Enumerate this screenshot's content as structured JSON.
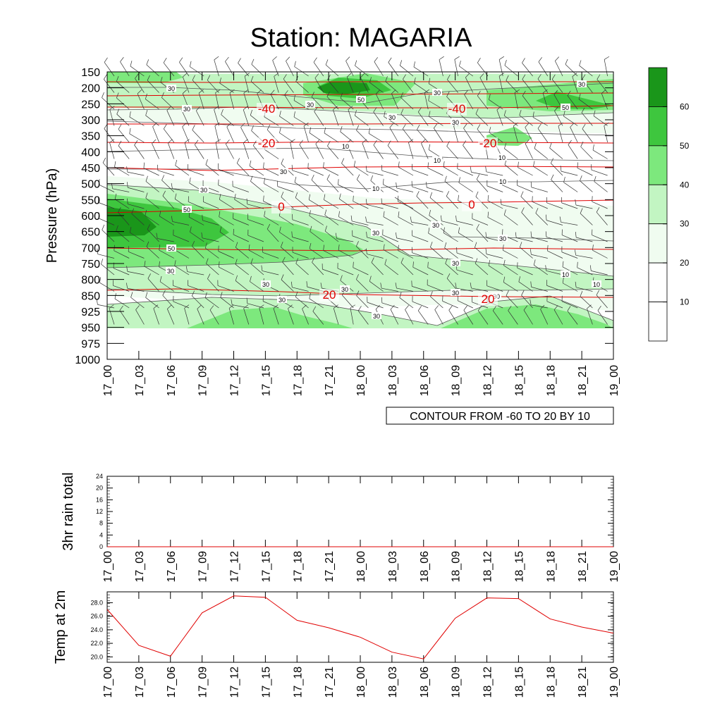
{
  "title": "Station: MAGARIA",
  "time_labels": [
    "17_00",
    "17_03",
    "17_06",
    "17_09",
    "17_12",
    "17_15",
    "17_18",
    "17_21",
    "18_00",
    "18_03",
    "18_06",
    "18_09",
    "18_12",
    "18_15",
    "18_18",
    "18_21",
    "19_00"
  ],
  "chart_data": [
    {
      "type": "heatmap",
      "name": "wind speed / temperature cross-section",
      "title": "Station: MAGARIA",
      "ylabel": "Pressure (hPa)",
      "xlabel": "",
      "pressure_levels": [
        150,
        200,
        250,
        300,
        350,
        400,
        450,
        500,
        550,
        600,
        650,
        700,
        750,
        800,
        850,
        925,
        950,
        975,
        1000
      ],
      "x": [
        "17_00",
        "17_03",
        "17_06",
        "17_09",
        "17_12",
        "17_15",
        "17_18",
        "17_21",
        "18_00",
        "18_03",
        "18_06",
        "18_09",
        "18_12",
        "18_15",
        "18_18",
        "18_21",
        "19_00"
      ],
      "colorbar": {
        "levels": [
          10,
          20,
          30,
          40,
          50,
          60
        ],
        "labels": [
          "10",
          "20",
          "30",
          "40",
          "50",
          "60"
        ],
        "colors": [
          "#ffffff",
          "#f0fcf0",
          "#c2f5c2",
          "#7de87d",
          "#3ec63e",
          "#1a961a"
        ]
      },
      "contour_labels": [
        "30",
        "30",
        "30",
        "50",
        "30",
        "50",
        "30",
        "30",
        "30",
        "10",
        "10",
        "30",
        "10",
        "10",
        "10",
        "30",
        "50",
        "50",
        "30",
        "30",
        "30",
        "30",
        "30",
        "30",
        "30",
        "30",
        "30",
        "10",
        "10",
        "30",
        "30"
      ],
      "temperature_labels": [
        "-40",
        "-40",
        "-20",
        "-20",
        "0",
        "0",
        "20",
        "20"
      ],
      "info_label": "CONTOUR FROM -60 TO 20 BY 10"
    },
    {
      "type": "line",
      "name": "3hr rain total",
      "ylabel": "3hr rain total",
      "x": [
        "17_00",
        "17_03",
        "17_06",
        "17_09",
        "17_12",
        "17_15",
        "17_18",
        "17_21",
        "18_00",
        "18_03",
        "18_06",
        "18_09",
        "18_12",
        "18_15",
        "18_18",
        "18_21",
        "19_00"
      ],
      "yticks": [
        "0",
        "4",
        "8",
        "12",
        "16",
        "20",
        "24"
      ],
      "ylim": [
        0,
        24
      ],
      "values": [
        0,
        0,
        0,
        0,
        0,
        0,
        0,
        0,
        0,
        0,
        0,
        0,
        0,
        0,
        0,
        0,
        0
      ]
    },
    {
      "type": "line",
      "name": "Temp at 2m",
      "ylabel": "Temp at 2m",
      "x": [
        "17_00",
        "17_03",
        "17_06",
        "17_09",
        "17_12",
        "17_15",
        "17_18",
        "17_21",
        "18_00",
        "18_03",
        "18_06",
        "18_09",
        "18_12",
        "18_15",
        "18_18",
        "18_21",
        "19_00"
      ],
      "yticks": [
        "20.0",
        "22.0",
        "24.0",
        "26.0",
        "28.0"
      ],
      "ylim": [
        19.2,
        29.6
      ],
      "values": [
        27.0,
        21.7,
        20.1,
        26.5,
        29.0,
        28.8,
        25.4,
        24.3,
        22.9,
        20.7,
        19.7,
        25.7,
        28.7,
        28.6,
        25.6,
        24.4,
        23.5
      ],
      "color": "#e00000"
    }
  ]
}
